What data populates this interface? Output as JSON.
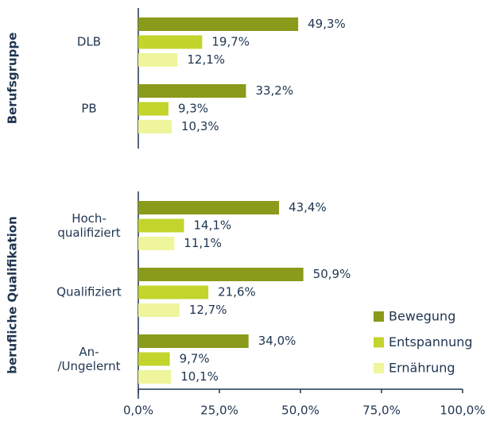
{
  "chart_data": {
    "type": "bar",
    "orientation": "horizontal",
    "categories": [
      "DLB",
      "PB",
      "Hoch-\nqualifiziert",
      "Qualifiziert",
      "An-\n/Ungelernt"
    ],
    "groups": [
      {
        "name": "Berufsgruppe",
        "size": 2
      },
      {
        "name": "berufliche Qualifikation",
        "size": 3
      }
    ],
    "series": [
      {
        "name": "Bewegung",
        "color": "#8a9a1a",
        "values": [
          49.3,
          33.2,
          43.4,
          50.9,
          34.0
        ],
        "value_labels": [
          "49,3%",
          "33,2%",
          "43,4%",
          "50,9%",
          "34,0%"
        ]
      },
      {
        "name": "Entspannung",
        "color": "#c3d42c",
        "values": [
          19.7,
          9.3,
          14.1,
          21.6,
          9.7
        ],
        "value_labels": [
          "19,7%",
          "9,3%",
          "14,1%",
          "21,6%",
          "9,7%"
        ]
      },
      {
        "name": "Ernährung",
        "color": "#eef59b",
        "values": [
          12.1,
          10.3,
          11.1,
          12.7,
          10.1
        ],
        "value_labels": [
          "12,1%",
          "10,3%",
          "11,1%",
          "12,7%",
          "10,1%"
        ]
      }
    ],
    "xlim": [
      0,
      100
    ],
    "xticks": [
      {
        "value": 0,
        "label": "0,0%"
      },
      {
        "value": 25,
        "label": "25,0%"
      },
      {
        "value": 50,
        "label": "50,0%"
      },
      {
        "value": 75,
        "label": "75,0%"
      },
      {
        "value": 100,
        "label": "100,0%"
      }
    ],
    "legend": "lower right"
  }
}
